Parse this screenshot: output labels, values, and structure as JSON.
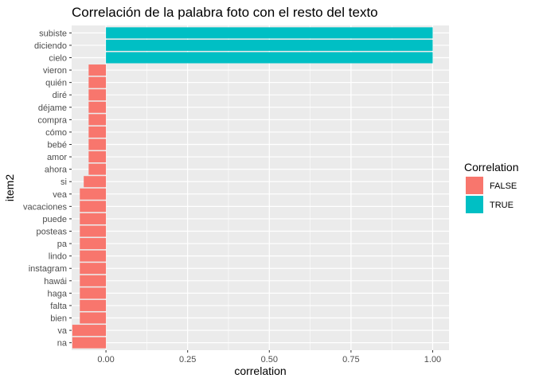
{
  "chart_data": {
    "type": "bar",
    "orientation": "horizontal",
    "title": "Correlación de la palabra foto con el resto del texto",
    "xlabel": "correlation",
    "ylabel": "item2",
    "xlim": [
      -0.105,
      1.05
    ],
    "x_ticks": [
      0.0,
      0.25,
      0.5,
      0.75,
      1.0
    ],
    "x_tick_labels": [
      "0.00",
      "0.25",
      "0.50",
      "0.75",
      "1.00"
    ],
    "grid": true,
    "legend": {
      "title": "Correlation",
      "position": "right",
      "entries": [
        {
          "label": "FALSE",
          "color": "#F8766D"
        },
        {
          "label": "TRUE",
          "color": "#00BFC4"
        }
      ]
    },
    "categories": [
      "subiste",
      "diciendo",
      "cielo",
      "vieron",
      "quién",
      "diré",
      "déjame",
      "compra",
      "cómo",
      "bebé",
      "amor",
      "ahora",
      "si",
      "vea",
      "vacaciones",
      "puede",
      "posteas",
      "pa",
      "lindo",
      "instagram",
      "hawái",
      "haga",
      "falta",
      "bien",
      "va",
      "na"
    ],
    "values": [
      1.0,
      1.0,
      1.0,
      -0.053,
      -0.053,
      -0.053,
      -0.053,
      -0.053,
      -0.053,
      -0.053,
      -0.053,
      -0.053,
      -0.068,
      -0.08,
      -0.08,
      -0.08,
      -0.08,
      -0.08,
      -0.08,
      -0.08,
      -0.08,
      -0.08,
      -0.08,
      -0.08,
      -0.103,
      -0.103
    ],
    "correlation_flags": [
      "TRUE",
      "TRUE",
      "TRUE",
      "FALSE",
      "FALSE",
      "FALSE",
      "FALSE",
      "FALSE",
      "FALSE",
      "FALSE",
      "FALSE",
      "FALSE",
      "FALSE",
      "FALSE",
      "FALSE",
      "FALSE",
      "FALSE",
      "FALSE",
      "FALSE",
      "FALSE",
      "FALSE",
      "FALSE",
      "FALSE",
      "FALSE",
      "FALSE",
      "FALSE"
    ]
  }
}
